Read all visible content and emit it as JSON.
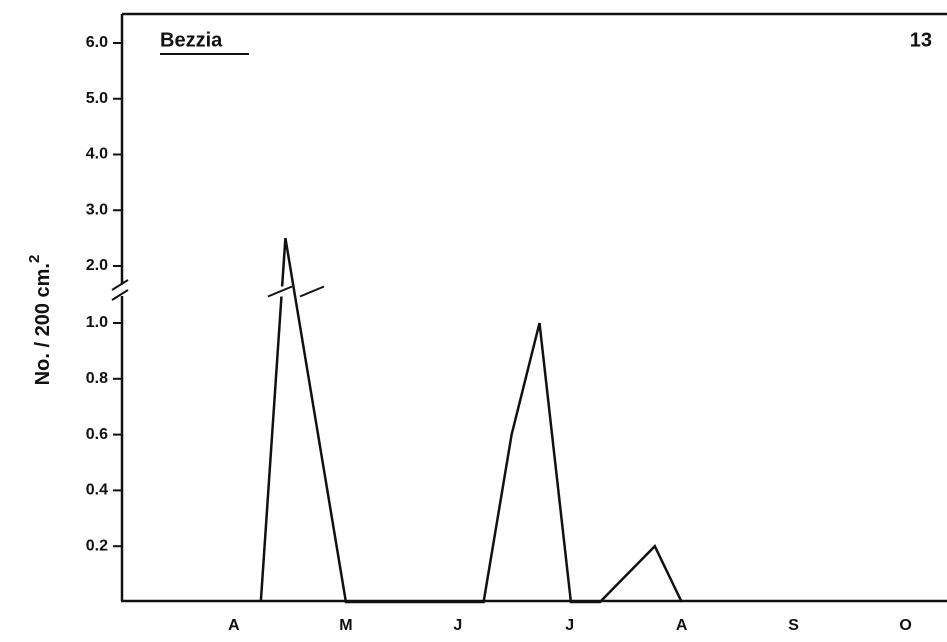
{
  "chart_data": {
    "type": "line",
    "title": "Bezzia",
    "panel_label": "13",
    "y_label": "No. / 200 cm.",
    "y_label_superscript": "2",
    "x": [
      1.24,
      1.46,
      2.0,
      3.23,
      3.48,
      3.73,
      4.01,
      4.27,
      4.76,
      5.0
    ],
    "series": [
      {
        "name": "Bezzia",
        "color": "#111111",
        "values": [
          0,
          2.5,
          0,
          0,
          0.6,
          1.0,
          0,
          0,
          0.2,
          0
        ]
      }
    ],
    "xlim": [
      0,
      7.37
    ],
    "xticks": [
      {
        "value": 1,
        "label": "A"
      },
      {
        "value": 2,
        "label": "M"
      },
      {
        "value": 3,
        "label": "J"
      },
      {
        "value": 4,
        "label": "J"
      },
      {
        "value": 5,
        "label": "A"
      },
      {
        "value": 6,
        "label": "S"
      },
      {
        "value": 7,
        "label": "O"
      }
    ],
    "ylim": [
      0,
      6
    ],
    "axis_break": [
      1.0,
      2.0
    ],
    "yticks": [
      0.2,
      0.4,
      0.6,
      0.8,
      {
        "value": 1,
        "label": "1.0"
      },
      {
        "value": 2,
        "label": "2.0"
      },
      {
        "value": 3,
        "label": "3.0"
      },
      {
        "value": 4,
        "label": "4.0"
      },
      {
        "value": 5,
        "label": "5.0"
      },
      {
        "value": 6,
        "label": "6.0"
      }
    ],
    "grid": false
  }
}
